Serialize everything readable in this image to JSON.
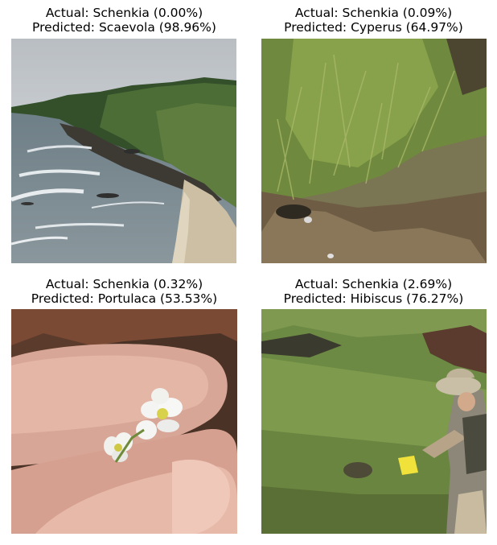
{
  "panels": [
    {
      "actual": "Actual: Schenkia (0.00%)",
      "predicted": "Predicted: Scaevola (98.96%)",
      "image": "coastal cliff beach photo"
    },
    {
      "actual": "Actual: Schenkia (0.09%)",
      "predicted": "Predicted: Cyperus (64.97%)",
      "image": "grassy slope photo"
    },
    {
      "actual": "Actual: Schenkia (0.32%)",
      "predicted": "Predicted: Portulaca (53.53%)",
      "image": "small white flower between fingers photo"
    },
    {
      "actual": "Actual: Schenkia (2.69%)",
      "predicted": "Predicted: Hibiscus (76.27%)",
      "image": "person on vegetated hillside photo"
    }
  ]
}
